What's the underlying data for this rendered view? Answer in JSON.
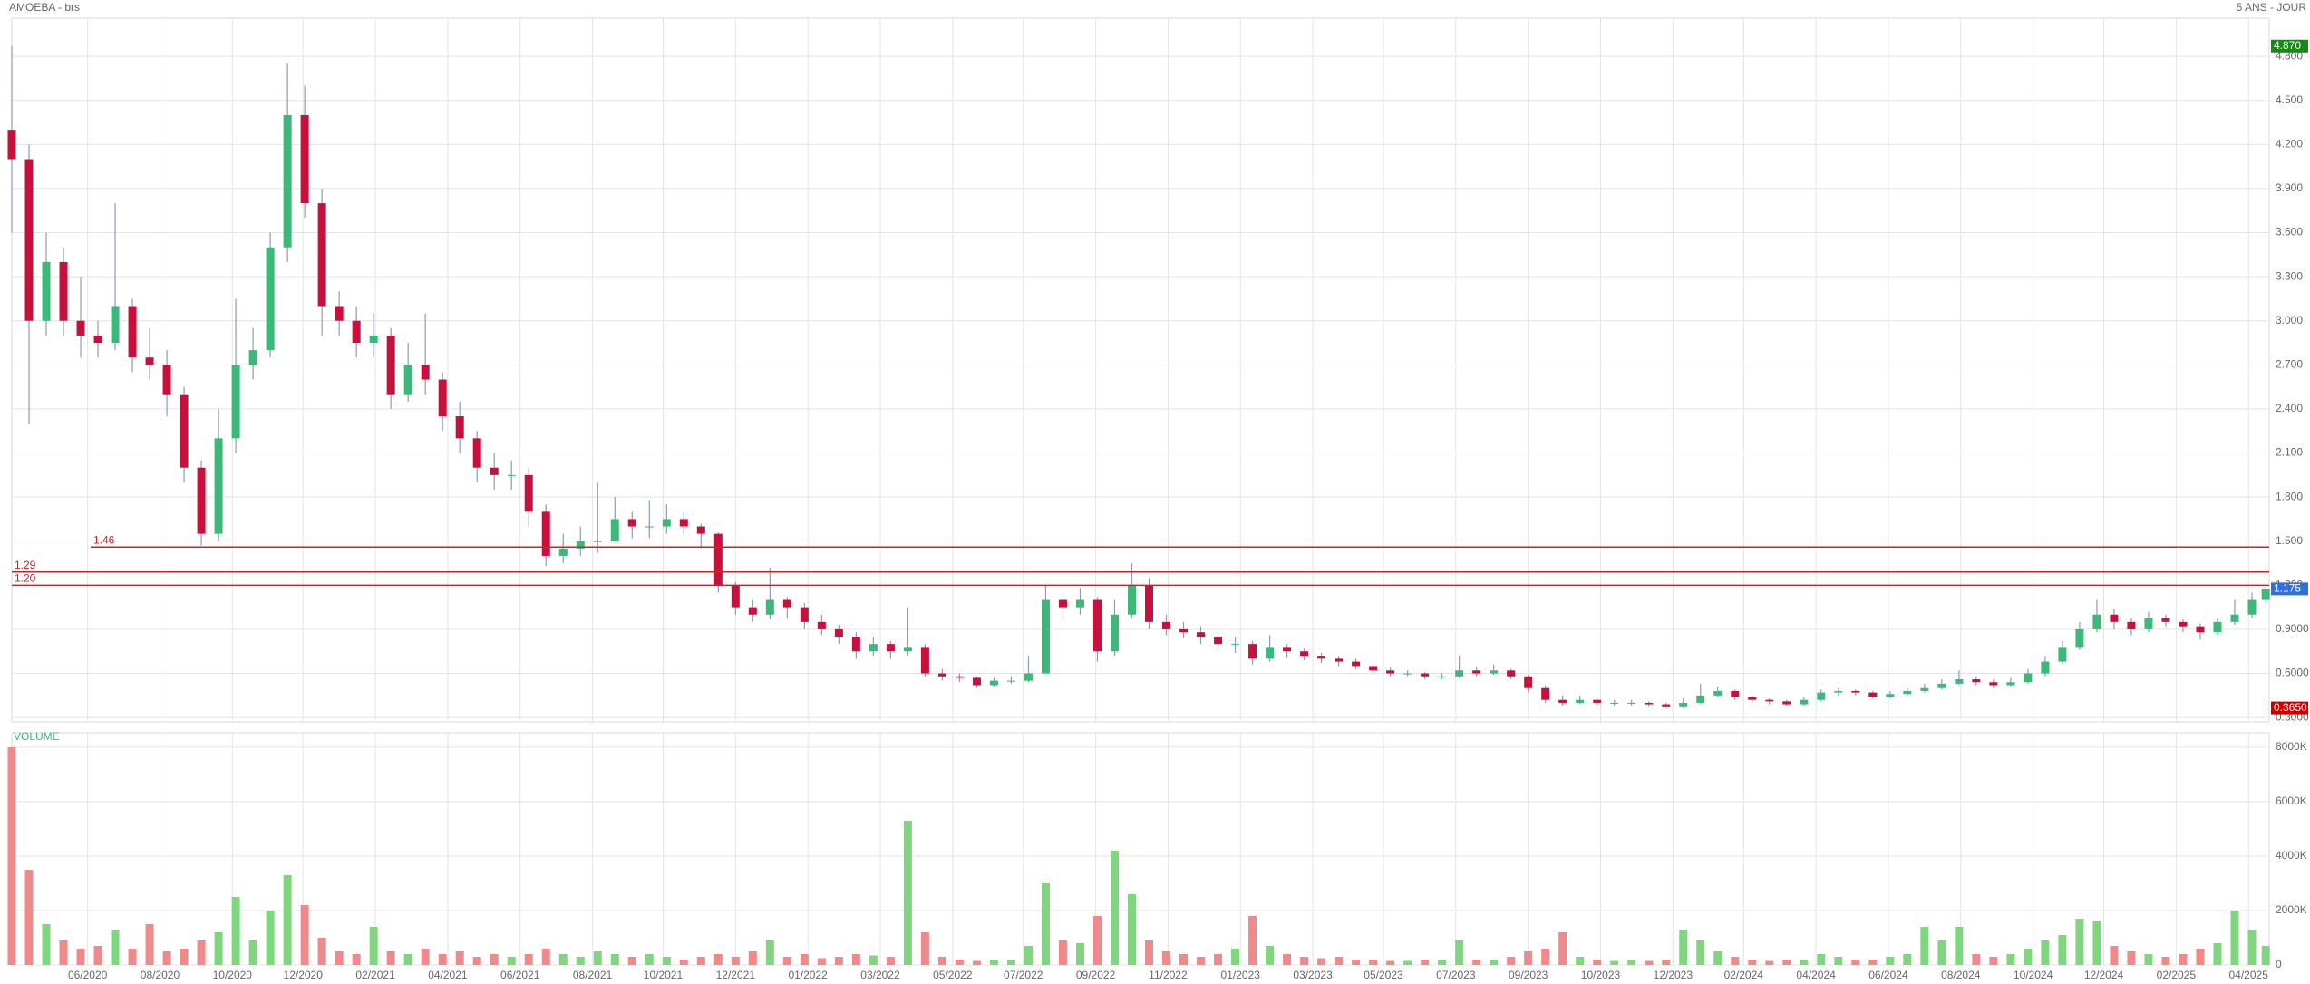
{
  "chart_data": {
    "type": "candlestick",
    "title": "AMOEBA - brs",
    "subtitle": "5 ANS - JOUR",
    "up_color": "#3cb878",
    "down_color": "#c8103c",
    "wick_color": "#8a9ac0",
    "grid": true,
    "xlim": [
      0,
      1310
    ],
    "xticks": [
      {
        "value": 44,
        "label": "06/2020"
      },
      {
        "value": 86,
        "label": "08/2020"
      },
      {
        "value": 128,
        "label": "10/2020"
      },
      {
        "value": 169,
        "label": "12/2020"
      },
      {
        "value": 211,
        "label": "02/2021"
      },
      {
        "value": 253,
        "label": "04/2021"
      },
      {
        "value": 295,
        "label": "06/2021"
      },
      {
        "value": 337,
        "label": "08/2021"
      },
      {
        "value": 378,
        "label": "10/2021"
      },
      {
        "value": 420,
        "label": "12/2021"
      },
      {
        "value": 462,
        "label": "01/2022"
      },
      {
        "value": 504,
        "label": "03/2022"
      },
      {
        "value": 546,
        "label": "05/2022"
      },
      {
        "value": 587,
        "label": "07/2022"
      },
      {
        "value": 629,
        "label": "09/2022"
      },
      {
        "value": 671,
        "label": "11/2022"
      },
      {
        "value": 713,
        "label": "01/2023"
      },
      {
        "value": 755,
        "label": "03/2023"
      },
      {
        "value": 796,
        "label": "05/2023"
      },
      {
        "value": 838,
        "label": "07/2023"
      },
      {
        "value": 880,
        "label": "09/2023"
      },
      {
        "value": 922,
        "label": "10/2023"
      },
      {
        "value": 964,
        "label": "12/2023"
      },
      {
        "value": 1005,
        "label": "02/2024"
      },
      {
        "value": 1047,
        "label": "04/2024"
      },
      {
        "value": 1089,
        "label": "06/2024"
      },
      {
        "value": 1131,
        "label": "08/2024"
      },
      {
        "value": 1173,
        "label": "10/2024"
      },
      {
        "value": 1214,
        "label": "12/2024"
      },
      {
        "value": 1256,
        "label": "02/2025"
      },
      {
        "value": 1298,
        "label": "04/2025"
      }
    ],
    "ylim": [
      0.27,
      5.06
    ],
    "yticks": [
      {
        "value": 4.8,
        "label": "4.800"
      },
      {
        "value": 4.5,
        "label": "4.500"
      },
      {
        "value": 4.2,
        "label": "4.200"
      },
      {
        "value": 3.9,
        "label": "3.900"
      },
      {
        "value": 3.6,
        "label": "3.600"
      },
      {
        "value": 3.3,
        "label": "3.300"
      },
      {
        "value": 3.0,
        "label": "3.000"
      },
      {
        "value": 2.7,
        "label": "2.700"
      },
      {
        "value": 2.4,
        "label": "2.400"
      },
      {
        "value": 2.1,
        "label": "2.100"
      },
      {
        "value": 1.8,
        "label": "1.800"
      },
      {
        "value": 1.5,
        "label": "1.500"
      },
      {
        "value": 1.2,
        "label": "1.200"
      },
      {
        "value": 0.9,
        "label": "0.9000"
      },
      {
        "value": 0.6,
        "label": "0.6000"
      },
      {
        "value": 0.3,
        "label": "0.3000"
      }
    ],
    "hlines": [
      1.46,
      1.29,
      {
        "value": 1.2,
        "label": "1.20"
      }
    ],
    "hline_color": "#cc2222",
    "markers": [
      {
        "value": 4.87,
        "label": "4.870",
        "color": "#158a15"
      },
      {
        "value": 1.175,
        "label": "1.175",
        "color": "#2f6fe0"
      },
      {
        "value": 0.365,
        "label": "0.3650",
        "color": "#cc0000"
      }
    ],
    "x": [
      0,
      10,
      20,
      30,
      40,
      50,
      60,
      70,
      80,
      90,
      100,
      110,
      120,
      130,
      140,
      150,
      160,
      170,
      180,
      190,
      200,
      210,
      220,
      230,
      240,
      250,
      260,
      270,
      280,
      290,
      300,
      310,
      320,
      330,
      340,
      350,
      360,
      370,
      380,
      390,
      400,
      410,
      420,
      430,
      440,
      450,
      460,
      470,
      480,
      490,
      500,
      510,
      520,
      530,
      540,
      550,
      560,
      570,
      580,
      590,
      600,
      610,
      620,
      630,
      640,
      650,
      660,
      670,
      680,
      690,
      700,
      710,
      720,
      730,
      740,
      750,
      760,
      770,
      780,
      790,
      800,
      810,
      820,
      830,
      840,
      850,
      860,
      870,
      880,
      890,
      900,
      910,
      920,
      930,
      940,
      950,
      960,
      970,
      980,
      990,
      1000,
      1010,
      1020,
      1030,
      1040,
      1050,
      1060,
      1070,
      1080,
      1090,
      1100,
      1110,
      1120,
      1130,
      1140,
      1150,
      1160,
      1170,
      1180,
      1190,
      1200,
      1210,
      1220,
      1230,
      1240,
      1250,
      1260,
      1270,
      1280,
      1290,
      1300,
      1308
    ],
    "open": [
      4.3,
      4.1,
      3.0,
      3.4,
      3.0,
      2.9,
      2.85,
      3.1,
      2.75,
      2.7,
      2.5,
      2.0,
      1.55,
      2.2,
      2.7,
      2.8,
      3.5,
      4.4,
      3.8,
      3.1,
      3.0,
      2.85,
      2.9,
      2.5,
      2.7,
      2.6,
      2.35,
      2.2,
      2.0,
      1.95,
      1.95,
      1.7,
      1.4,
      1.45,
      1.5,
      1.5,
      1.65,
      1.6,
      1.6,
      1.65,
      1.6,
      1.55,
      1.2,
      1.05,
      1.0,
      1.1,
      1.05,
      0.95,
      0.9,
      0.85,
      0.75,
      0.8,
      0.75,
      0.78,
      0.6,
      0.58,
      0.57,
      0.52,
      0.55,
      0.55,
      0.6,
      1.1,
      1.05,
      1.1,
      0.75,
      1.0,
      1.2,
      0.95,
      0.9,
      0.88,
      0.85,
      0.8,
      0.8,
      0.7,
      0.78,
      0.75,
      0.72,
      0.7,
      0.68,
      0.65,
      0.62,
      0.6,
      0.6,
      0.58,
      0.58,
      0.62,
      0.6,
      0.62,
      0.58,
      0.5,
      0.42,
      0.4,
      0.42,
      0.4,
      0.4,
      0.4,
      0.39,
      0.37,
      0.4,
      0.45,
      0.48,
      0.44,
      0.42,
      0.41,
      0.39,
      0.42,
      0.47,
      0.48,
      0.47,
      0.44,
      0.46,
      0.48,
      0.5,
      0.53,
      0.56,
      0.54,
      0.52,
      0.54,
      0.6,
      0.68,
      0.78,
      0.9,
      1.0,
      0.95,
      0.9,
      0.98,
      0.95,
      0.92,
      0.88,
      0.95,
      1.0,
      1.1
    ],
    "high": [
      4.87,
      4.2,
      3.6,
      3.5,
      3.3,
      3.0,
      3.8,
      3.15,
      2.95,
      2.8,
      2.55,
      2.05,
      2.4,
      3.15,
      2.95,
      3.6,
      4.75,
      4.6,
      3.9,
      3.2,
      3.1,
      3.05,
      2.95,
      2.85,
      3.05,
      2.65,
      2.45,
      2.25,
      2.1,
      2.05,
      2.0,
      1.75,
      1.55,
      1.6,
      1.9,
      1.8,
      1.7,
      1.78,
      1.75,
      1.7,
      1.62,
      1.56,
      1.22,
      1.1,
      1.32,
      1.12,
      1.08,
      1.0,
      0.93,
      0.88,
      0.85,
      0.82,
      1.05,
      0.8,
      0.63,
      0.6,
      0.58,
      0.57,
      0.58,
      0.72,
      1.2,
      1.15,
      1.18,
      1.12,
      1.1,
      1.35,
      1.25,
      1.0,
      0.95,
      0.92,
      0.88,
      0.85,
      0.82,
      0.86,
      0.8,
      0.77,
      0.74,
      0.72,
      0.7,
      0.67,
      0.64,
      0.62,
      0.61,
      0.6,
      0.72,
      0.64,
      0.66,
      0.63,
      0.59,
      0.52,
      0.45,
      0.45,
      0.43,
      0.42,
      0.42,
      0.41,
      0.4,
      0.43,
      0.53,
      0.51,
      0.49,
      0.45,
      0.43,
      0.42,
      0.44,
      0.49,
      0.5,
      0.49,
      0.48,
      0.48,
      0.5,
      0.53,
      0.56,
      0.62,
      0.58,
      0.56,
      0.57,
      0.63,
      0.72,
      0.82,
      0.95,
      1.1,
      1.04,
      0.98,
      1.02,
      1.0,
      0.97,
      0.94,
      0.98,
      1.1,
      1.15,
      1.19
    ],
    "low": [
      3.6,
      2.3,
      2.9,
      2.9,
      2.75,
      2.75,
      2.8,
      2.65,
      2.6,
      2.35,
      1.9,
      1.47,
      1.5,
      2.1,
      2.6,
      2.75,
      3.4,
      3.7,
      2.9,
      2.9,
      2.75,
      2.75,
      2.4,
      2.45,
      2.5,
      2.25,
      2.1,
      1.9,
      1.85,
      1.85,
      1.6,
      1.33,
      1.35,
      1.4,
      1.42,
      1.5,
      1.52,
      1.52,
      1.55,
      1.55,
      1.45,
      1.15,
      1.0,
      0.95,
      0.97,
      0.98,
      0.9,
      0.86,
      0.8,
      0.7,
      0.72,
      0.7,
      0.72,
      0.58,
      0.55,
      0.54,
      0.5,
      0.51,
      0.53,
      0.54,
      0.6,
      0.98,
      1.0,
      0.68,
      0.72,
      0.98,
      0.9,
      0.86,
      0.84,
      0.8,
      0.76,
      0.74,
      0.66,
      0.68,
      0.71,
      0.69,
      0.67,
      0.65,
      0.63,
      0.6,
      0.58,
      0.58,
      0.56,
      0.56,
      0.57,
      0.58,
      0.59,
      0.56,
      0.47,
      0.4,
      0.38,
      0.39,
      0.38,
      0.38,
      0.38,
      0.37,
      0.365,
      0.365,
      0.39,
      0.44,
      0.42,
      0.4,
      0.39,
      0.38,
      0.38,
      0.41,
      0.45,
      0.45,
      0.43,
      0.43,
      0.45,
      0.47,
      0.49,
      0.52,
      0.52,
      0.5,
      0.51,
      0.53,
      0.58,
      0.66,
      0.76,
      0.88,
      0.9,
      0.86,
      0.88,
      0.92,
      0.88,
      0.83,
      0.86,
      0.93,
      0.98,
      1.08
    ],
    "close": [
      4.1,
      3.0,
      3.4,
      3.0,
      2.9,
      2.85,
      3.1,
      2.75,
      2.7,
      2.5,
      2.0,
      1.55,
      2.2,
      2.7,
      2.8,
      3.5,
      4.4,
      3.8,
      3.1,
      3.0,
      2.85,
      2.9,
      2.5,
      2.7,
      2.6,
      2.35,
      2.2,
      2.0,
      1.95,
      1.95,
      1.7,
      1.4,
      1.45,
      1.5,
      1.5,
      1.65,
      1.6,
      1.6,
      1.65,
      1.6,
      1.55,
      1.2,
      1.05,
      1.0,
      1.1,
      1.05,
      0.95,
      0.9,
      0.85,
      0.75,
      0.8,
      0.75,
      0.78,
      0.6,
      0.58,
      0.57,
      0.52,
      0.55,
      0.55,
      0.6,
      1.1,
      1.05,
      1.1,
      0.75,
      1.0,
      1.2,
      0.95,
      0.9,
      0.88,
      0.85,
      0.8,
      0.8,
      0.7,
      0.78,
      0.75,
      0.72,
      0.7,
      0.68,
      0.65,
      0.62,
      0.6,
      0.6,
      0.58,
      0.58,
      0.62,
      0.6,
      0.62,
      0.58,
      0.5,
      0.42,
      0.4,
      0.42,
      0.4,
      0.4,
      0.4,
      0.39,
      0.37,
      0.4,
      0.45,
      0.48,
      0.44,
      0.42,
      0.41,
      0.39,
      0.42,
      0.47,
      0.48,
      0.47,
      0.44,
      0.46,
      0.48,
      0.5,
      0.53,
      0.56,
      0.54,
      0.52,
      0.54,
      0.6,
      0.68,
      0.78,
      0.9,
      1.0,
      0.95,
      0.9,
      0.98,
      0.95,
      0.92,
      0.88,
      0.95,
      1.0,
      1.1,
      1.175
    ],
    "volume": {
      "title": "VOLUME",
      "up_color": "#7fd67f",
      "down_color": "#f08a8a",
      "title_color": "#3cb878",
      "ylim": [
        0,
        8530
      ],
      "yticks": [
        {
          "value": 0,
          "label": "0"
        },
        {
          "value": 2000,
          "label": "2000K"
        },
        {
          "value": 4000,
          "label": "4000K"
        },
        {
          "value": 6000,
          "label": "6000K"
        },
        {
          "value": 8000,
          "label": "8000K"
        }
      ],
      "values": [
        8000,
        3500,
        1500,
        900,
        600,
        700,
        1300,
        600,
        1500,
        500,
        600,
        900,
        1200,
        2500,
        900,
        2000,
        3300,
        2200,
        1000,
        500,
        400,
        1400,
        500,
        400,
        600,
        400,
        500,
        300,
        400,
        300,
        400,
        600,
        400,
        300,
        500,
        400,
        300,
        400,
        300,
        200,
        300,
        400,
        300,
        500,
        900,
        300,
        400,
        250,
        300,
        400,
        350,
        300,
        5300,
        1200,
        300,
        200,
        150,
        200,
        200,
        700,
        3000,
        900,
        800,
        1800,
        4200,
        2600,
        900,
        500,
        400,
        300,
        400,
        600,
        1800,
        700,
        400,
        300,
        250,
        300,
        200,
        200,
        150,
        150,
        200,
        200,
        900,
        200,
        200,
        300,
        500,
        600,
        1200,
        300,
        200,
        150,
        200,
        150,
        200,
        1300,
        900,
        500,
        300,
        200,
        150,
        200,
        200,
        400,
        300,
        200,
        200,
        300,
        400,
        1400,
        900,
        1400,
        400,
        300,
        400,
        600,
        900,
        1100,
        1700,
        1600,
        700,
        500,
        400,
        300,
        400,
        600,
        800,
        2000,
        1300,
        700
      ]
    }
  }
}
